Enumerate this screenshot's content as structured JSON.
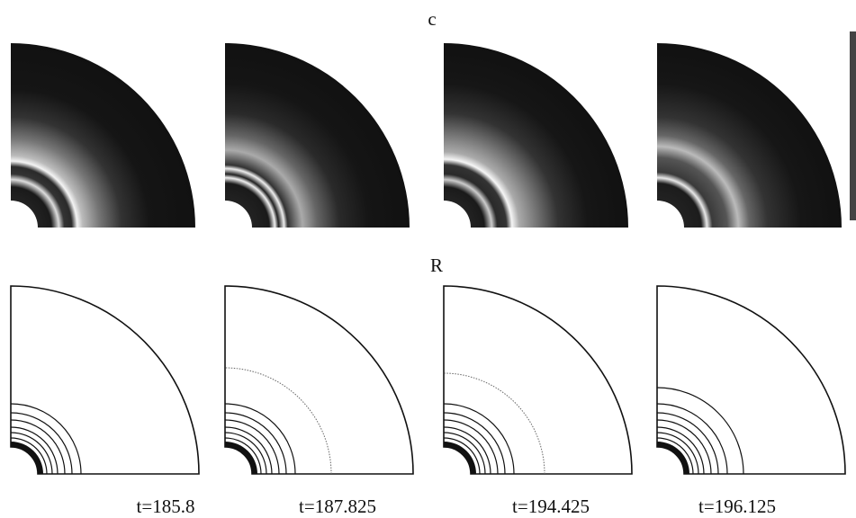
{
  "labels": {
    "top": "c",
    "bottom": "R"
  },
  "panels": [
    {
      "time": "t=185.8"
    },
    {
      "time": "t=187.825"
    },
    {
      "time": "t=194.425"
    },
    {
      "time": "t=196.125"
    }
  ]
}
